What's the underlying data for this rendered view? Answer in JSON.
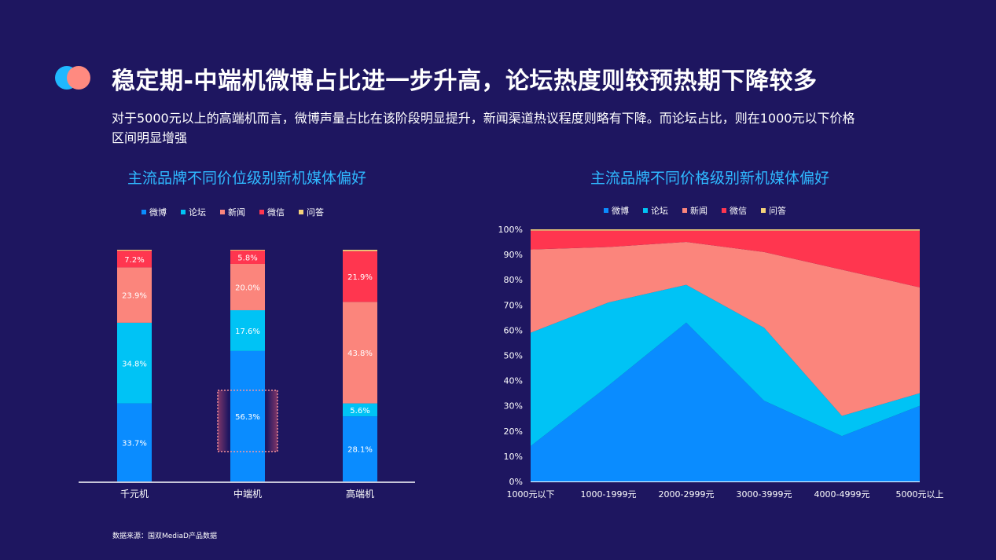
{
  "title": "稳定期-中端机微博占比进一步升高，论坛热度则较预热期下降较多",
  "subtitle": "对于5000元以上的高端机而言，微博声量占比在该阶段明显提升，新闻渠道热议程度则略有下降。而论坛占比，则在1000元以下价格区间明显增强",
  "source": "数据来源：国双MediaD产品数据",
  "colors": {
    "weibo": "#0a8cff",
    "luntan": "#00c3f5",
    "xinwen": "#fb857c",
    "weixin": "#ff364f",
    "wenda": "#f5d37a"
  },
  "chart_data": [
    {
      "type": "bar",
      "stacked": true,
      "title": "主流品牌不同价位级别新机媒体偏好",
      "categories": [
        "千元机",
        "中端机",
        "高端机"
      ],
      "legend_position": "top",
      "series": [
        {
          "name": "微博",
          "values": [
            33.7,
            56.3,
            28.1
          ]
        },
        {
          "name": "论坛",
          "values": [
            34.8,
            17.6,
            5.6
          ]
        },
        {
          "name": "新闻",
          "values": [
            23.9,
            20.0,
            43.8
          ]
        },
        {
          "name": "微信",
          "values": [
            7.2,
            5.8,
            21.9
          ]
        },
        {
          "name": "问答",
          "values": [
            0.4,
            0.3,
            0.6
          ]
        }
      ],
      "labels": [
        [
          "33.7%",
          "56.3%",
          "28.1%"
        ],
        [
          "34.8%",
          "17.6%",
          "5.6%"
        ],
        [
          "23.9%",
          "20.0%",
          "43.8%"
        ],
        [
          "7.2%",
          "5.8%",
          "21.9%"
        ],
        [
          "",
          "",
          ""
        ]
      ],
      "highlight_category": "中端机",
      "ylim": [
        0,
        100
      ]
    },
    {
      "type": "area",
      "stacked": true,
      "title": "主流品牌不同价格级别新机媒体偏好",
      "categories": [
        "1000元以下",
        "1000-1999元",
        "2000-2999元",
        "3000-3999元",
        "4000-4999元",
        "5000元以上"
      ],
      "legend_position": "top",
      "y_ticks": [
        "0%",
        "10%",
        "20%",
        "30%",
        "40%",
        "50%",
        "60%",
        "70%",
        "80%",
        "90%",
        "100%"
      ],
      "ylim": [
        0,
        100
      ],
      "series": [
        {
          "name": "微博",
          "values": [
            14,
            38,
            63,
            32,
            18,
            30
          ]
        },
        {
          "name": "论坛",
          "values": [
            45,
            33,
            15,
            29,
            8,
            5
          ]
        },
        {
          "name": "新闻",
          "values": [
            33,
            22,
            17,
            30,
            58,
            42
          ]
        },
        {
          "name": "微信",
          "values": [
            7.5,
            6.5,
            4.5,
            8.5,
            15.5,
            22.5
          ]
        },
        {
          "name": "问答",
          "values": [
            0.5,
            0.5,
            0.5,
            0.5,
            0.5,
            0.5
          ]
        }
      ]
    }
  ]
}
